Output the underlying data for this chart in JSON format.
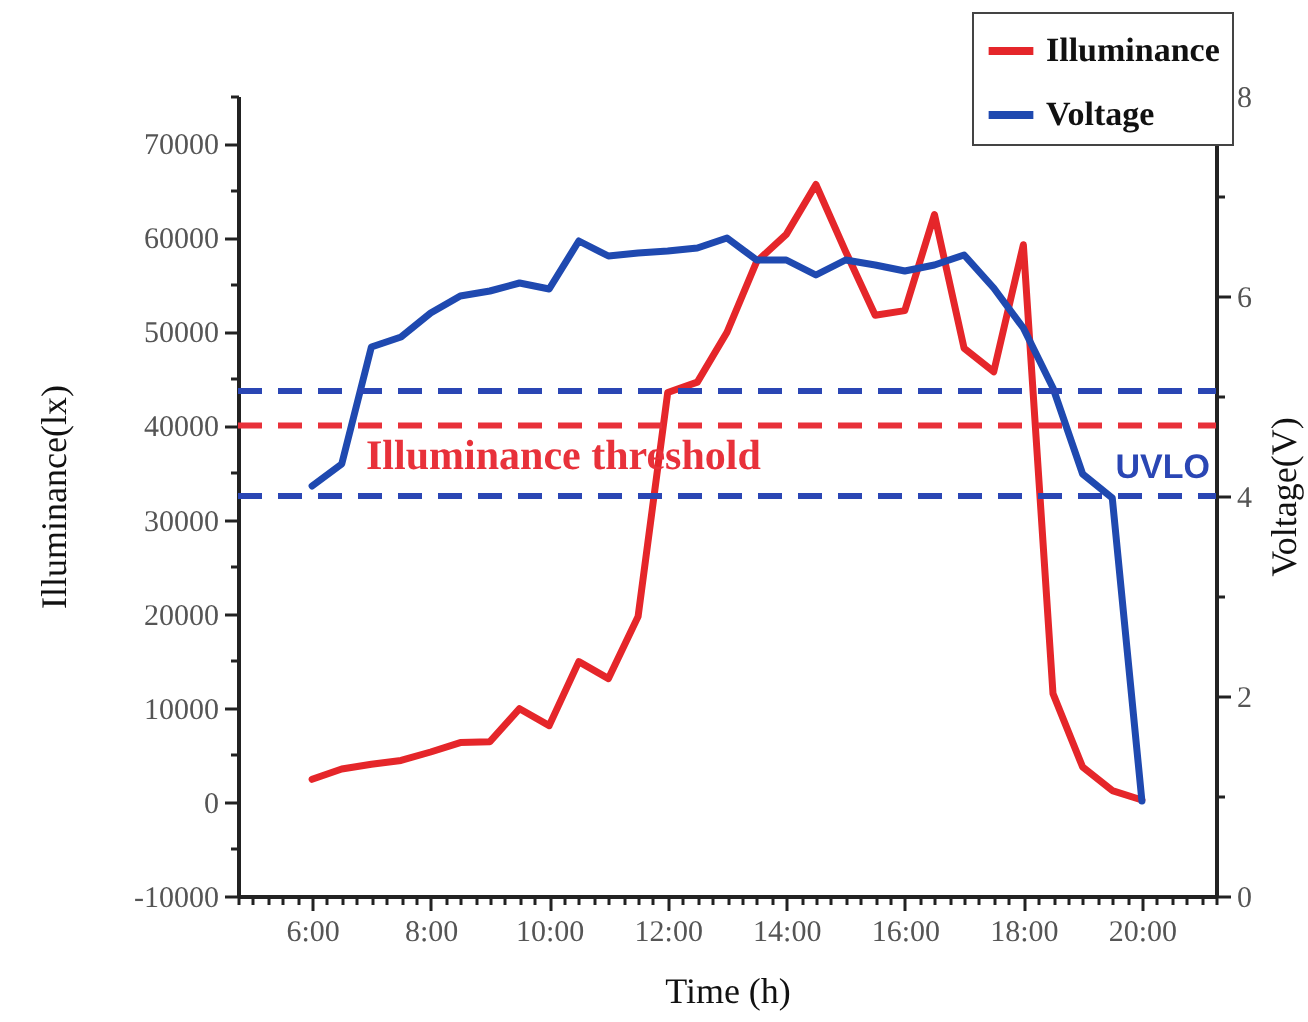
{
  "chart_data": {
    "type": "line",
    "xlabel": "Time (h)",
    "ylabel": "Illuminance(lx)",
    "y2label": "Voltage(V)",
    "x": [
      6,
      6.5,
      7,
      7.5,
      8,
      8.5,
      9,
      9.5,
      10,
      10.5,
      11,
      11.5,
      12,
      12.5,
      13,
      13.5,
      14,
      14.5,
      15,
      15.5,
      16,
      16.5,
      17,
      17.5,
      18,
      18.5,
      19,
      19.5,
      20
    ],
    "series": [
      {
        "name": "Illuminance",
        "color": "#e5262a",
        "values": [
          2400,
          3500,
          4000,
          4400,
          5300,
          6300,
          6400,
          9900,
          8100,
          14900,
          13100,
          19700,
          43500,
          44600,
          49900,
          57400,
          60300,
          65600,
          58500,
          51700,
          52200,
          62400,
          48200,
          45700,
          59200,
          11500,
          3700,
          1200,
          200
        ]
      },
      {
        "name": "Voltage",
        "color": "#1f49b0",
        "axis": "y2",
        "values": [
          4.1,
          4.32,
          5.49,
          5.59,
          5.83,
          6.0,
          6.05,
          6.13,
          6.07,
          6.55,
          6.4,
          6.43,
          6.45,
          6.48,
          6.58,
          6.36,
          6.36,
          6.21,
          6.36,
          6.31,
          6.25,
          6.31,
          6.41,
          6.08,
          5.68,
          5.08,
          4.22,
          3.98,
          0.95
        ]
      }
    ],
    "xlim": [
      4.75,
      21.25
    ],
    "xticks": [
      {
        "value": 4.75,
        "label": null
      },
      {
        "value": 5,
        "label": null
      },
      {
        "value": 5.25,
        "label": null
      },
      {
        "value": 5.5,
        "label": null
      },
      {
        "value": 5.75,
        "label": null
      },
      {
        "value": 6,
        "label": "6:00"
      },
      {
        "value": 6.25,
        "label": null
      },
      {
        "value": 6.5,
        "label": null
      },
      {
        "value": 6.75,
        "label": null
      },
      {
        "value": 7,
        "label": null
      },
      {
        "value": 7.25,
        "label": null
      },
      {
        "value": 7.5,
        "label": null
      },
      {
        "value": 7.75,
        "label": null
      },
      {
        "value": 8,
        "label": "8:00"
      },
      {
        "value": 8.25,
        "label": null
      },
      {
        "value": 8.5,
        "label": null
      },
      {
        "value": 8.75,
        "label": null
      },
      {
        "value": 9,
        "label": null
      },
      {
        "value": 9.25,
        "label": null
      },
      {
        "value": 9.5,
        "label": null
      },
      {
        "value": 9.75,
        "label": null
      },
      {
        "value": 10,
        "label": "10:00"
      },
      {
        "value": 10.25,
        "label": null
      },
      {
        "value": 10.5,
        "label": null
      },
      {
        "value": 10.75,
        "label": null
      },
      {
        "value": 11,
        "label": null
      },
      {
        "value": 11.25,
        "label": null
      },
      {
        "value": 11.5,
        "label": null
      },
      {
        "value": 11.75,
        "label": null
      },
      {
        "value": 12,
        "label": "12:00"
      },
      {
        "value": 12.25,
        "label": null
      },
      {
        "value": 12.5,
        "label": null
      },
      {
        "value": 12.75,
        "label": null
      },
      {
        "value": 13,
        "label": null
      },
      {
        "value": 13.25,
        "label": null
      },
      {
        "value": 13.5,
        "label": null
      },
      {
        "value": 13.75,
        "label": null
      },
      {
        "value": 14,
        "label": "14:00"
      },
      {
        "value": 14.25,
        "label": null
      },
      {
        "value": 14.5,
        "label": null
      },
      {
        "value": 14.75,
        "label": null
      },
      {
        "value": 15,
        "label": null
      },
      {
        "value": 15.25,
        "label": null
      },
      {
        "value": 15.5,
        "label": null
      },
      {
        "value": 15.75,
        "label": null
      },
      {
        "value": 16,
        "label": "16:00"
      },
      {
        "value": 16.25,
        "label": null
      },
      {
        "value": 16.5,
        "label": null
      },
      {
        "value": 16.75,
        "label": null
      },
      {
        "value": 17,
        "label": null
      },
      {
        "value": 17.25,
        "label": null
      },
      {
        "value": 17.5,
        "label": null
      },
      {
        "value": 17.75,
        "label": null
      },
      {
        "value": 18,
        "label": "18:00"
      },
      {
        "value": 18.25,
        "label": null
      },
      {
        "value": 18.5,
        "label": null
      },
      {
        "value": 18.75,
        "label": null
      },
      {
        "value": 19,
        "label": null
      },
      {
        "value": 19.25,
        "label": null
      },
      {
        "value": 19.5,
        "label": null
      },
      {
        "value": 19.75,
        "label": null
      },
      {
        "value": 20,
        "label": "20:00"
      },
      {
        "value": 20.25,
        "label": null
      },
      {
        "value": 20.5,
        "label": null
      },
      {
        "value": 20.75,
        "label": null
      },
      {
        "value": 21,
        "label": null
      },
      {
        "value": 21.25,
        "label": null
      }
    ],
    "ylim": [
      -10000,
      75000
    ],
    "yticks": [
      -10000,
      {
        "value": -5000,
        "label": null
      },
      0,
      {
        "value": 5000,
        "label": null
      },
      10000,
      {
        "value": 15000,
        "label": null
      },
      20000,
      {
        "value": 25000,
        "label": null
      },
      30000,
      {
        "value": 35000,
        "label": null
      },
      40000,
      {
        "value": 45000,
        "label": null
      },
      50000,
      {
        "value": 55000,
        "label": null
      },
      60000,
      {
        "value": 65000,
        "label": null
      },
      70000,
      {
        "value": 75000,
        "label": null
      }
    ],
    "y2lim": [
      0,
      8
    ],
    "y2ticks": [
      0,
      {
        "value": 1,
        "label": null
      },
      2,
      {
        "value": 3,
        "label": null
      },
      4,
      {
        "value": 5,
        "label": null
      },
      6,
      {
        "value": 7,
        "label": null
      },
      8
    ],
    "ref_lines": [
      {
        "axis": "y",
        "value": 40000,
        "label": "Illuminance threshold",
        "color": "#e8313a",
        "line_style": "dashed"
      },
      {
        "axis": "y2",
        "value": 5.05,
        "label": null,
        "color": "#2a46b4",
        "line_style": "dashed"
      },
      {
        "axis": "y2",
        "value": 4.0,
        "label": "UVLO",
        "color": "#2a46b4",
        "line_style": "dashed"
      }
    ],
    "legend": "top right",
    "grid": false,
    "marker": "none",
    "line_style": "solid"
  }
}
